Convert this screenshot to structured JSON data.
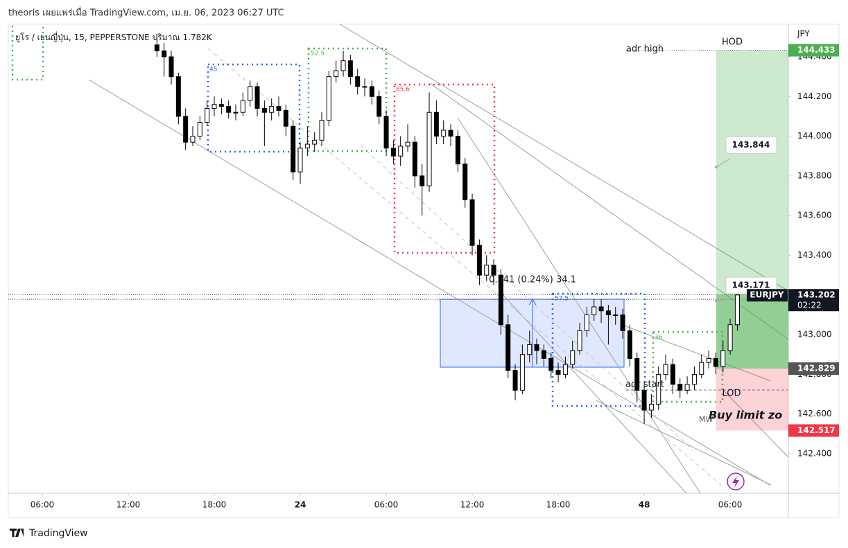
{
  "header": "theoris เผยแพร่เมื่อ TradingView.com, เม.ย. 06, 2023 06:27 UTC",
  "footer": "TradingView",
  "chart_data": {
    "type": "candlestick",
    "legend": "ยูโร / เยนญี่ปุ่น, 15, PEPPERSTONE",
    "volume_label": "ปริมาณ",
    "volume": "1.782K",
    "currency": "JPY",
    "symbol": "EURJPY",
    "up_color": "#ffffff",
    "down_color": "#000000",
    "x": [
      14,
      14.5,
      15,
      15.5,
      16,
      16.5,
      17,
      17.5,
      18,
      18.5,
      19,
      19.5,
      20,
      20.5,
      21,
      21.5,
      22,
      22.5,
      23,
      23.5,
      24,
      24.5,
      25,
      25.5,
      26,
      26.5,
      27,
      27.5,
      28,
      28.5,
      29,
      29.5,
      30,
      30.5,
      31,
      31.5,
      32,
      32.5,
      33,
      33.5,
      34,
      34.5,
      35,
      35.5,
      36,
      36.5,
      37,
      37.5,
      38,
      38.5,
      39,
      39.5,
      40,
      40.5,
      41,
      41.5,
      42,
      42.5,
      43,
      43.5,
      44,
      44.5,
      45,
      45.5,
      46,
      46.5,
      47,
      47.5,
      48,
      48.5,
      49,
      49.5,
      50,
      50.5,
      51,
      51.5,
      52,
      52.5,
      53,
      53.5,
      54,
      54.5
    ],
    "open": [
      144.46,
      144.43,
      144.4,
      144.3,
      144.1,
      143.97,
      144.0,
      144.07,
      144.14,
      144.16,
      144.15,
      144.12,
      144.12,
      144.18,
      144.25,
      144.14,
      144.12,
      144.15,
      144.13,
      144.05,
      143.82,
      143.94,
      143.96,
      143.98,
      144.08,
      144.3,
      144.33,
      144.38,
      144.3,
      144.25,
      144.25,
      144.2,
      144.1,
      143.94,
      143.9,
      143.95,
      143.97,
      143.8,
      143.75,
      144.12,
      144.0,
      144.03,
      144.0,
      143.86,
      143.68,
      143.45,
      143.3,
      143.35,
      143.3,
      143.05,
      142.82,
      142.72,
      142.9,
      142.95,
      142.92,
      142.88,
      142.82,
      142.8,
      142.85,
      142.92,
      143.02,
      143.1,
      143.14,
      143.12,
      143.1,
      143.1,
      143.02,
      142.88,
      142.72,
      142.62,
      142.65,
      142.8,
      142.85,
      142.75,
      142.72,
      142.75,
      142.8,
      142.86,
      142.88,
      142.84,
      142.92,
      143.05
    ],
    "high": [
      144.5,
      144.47,
      144.43,
      144.32,
      144.14,
      144.05,
      144.1,
      144.18,
      144.2,
      144.19,
      144.18,
      144.16,
      144.22,
      144.28,
      144.27,
      144.18,
      144.19,
      144.2,
      144.16,
      144.08,
      143.97,
      144.05,
      144.02,
      144.12,
      144.33,
      144.38,
      144.43,
      144.41,
      144.34,
      144.29,
      144.28,
      144.23,
      144.13,
      143.98,
      144.0,
      144.06,
      144.0,
      143.86,
      144.22,
      144.18,
      144.08,
      144.06,
      144.03,
      143.89,
      143.71,
      143.48,
      143.4,
      143.38,
      143.33,
      143.1,
      142.85,
      142.95,
      143.02,
      142.98,
      142.95,
      142.91,
      142.86,
      142.89,
      142.97,
      143.06,
      143.14,
      143.18,
      143.18,
      143.15,
      143.14,
      143.13,
      143.05,
      142.91,
      142.75,
      142.7,
      142.84,
      142.9,
      142.88,
      142.78,
      142.79,
      142.84,
      142.9,
      142.92,
      142.91,
      142.97,
      143.08,
      143.22
    ],
    "low": [
      144.4,
      144.3,
      144.26,
      144.06,
      143.93,
      143.95,
      143.98,
      144.05,
      144.1,
      144.11,
      144.09,
      144.08,
      144.1,
      144.15,
      144.1,
      143.95,
      144.08,
      144.1,
      144.0,
      143.78,
      143.76,
      143.9,
      143.92,
      143.95,
      144.05,
      144.27,
      144.3,
      144.26,
      144.21,
      144.2,
      144.16,
      144.06,
      143.9,
      143.86,
      143.85,
      143.92,
      143.74,
      143.6,
      143.72,
      143.96,
      143.96,
      143.95,
      143.82,
      143.64,
      143.4,
      143.25,
      143.27,
      143.25,
      143.0,
      142.78,
      142.67,
      142.7,
      142.86,
      142.85,
      142.84,
      142.78,
      142.76,
      142.78,
      142.83,
      142.9,
      142.99,
      143.07,
      143.06,
      142.95,
      143.05,
      142.98,
      142.84,
      142.66,
      142.55,
      142.58,
      142.62,
      142.77,
      142.7,
      142.68,
      142.7,
      142.72,
      142.78,
      142.83,
      142.8,
      142.81,
      142.9,
      143.02
    ],
    "close": [
      144.43,
      144.4,
      144.3,
      144.1,
      143.97,
      144.0,
      144.07,
      144.14,
      144.16,
      144.15,
      144.12,
      144.12,
      144.18,
      144.25,
      144.14,
      144.12,
      144.15,
      144.13,
      144.05,
      143.82,
      143.94,
      143.96,
      143.98,
      144.08,
      144.3,
      144.33,
      144.38,
      144.3,
      144.25,
      144.25,
      144.2,
      144.1,
      143.94,
      143.9,
      143.95,
      143.97,
      143.8,
      143.75,
      144.12,
      144.0,
      144.03,
      144.0,
      143.86,
      143.68,
      143.45,
      143.3,
      143.35,
      143.3,
      143.05,
      142.82,
      142.72,
      142.9,
      142.95,
      142.92,
      142.88,
      142.82,
      142.8,
      142.85,
      142.92,
      143.02,
      143.1,
      143.14,
      143.12,
      143.1,
      143.1,
      143.02,
      142.88,
      142.72,
      142.62,
      142.65,
      142.8,
      142.85,
      142.75,
      142.72,
      142.75,
      142.8,
      142.86,
      142.88,
      142.84,
      142.92,
      143.05,
      143.2
    ],
    "xlim": [
      3.63,
      58.06
    ],
    "xticks": [
      {
        "value": 6,
        "label": "06:00"
      },
      {
        "value": 12,
        "label": "12:00"
      },
      {
        "value": 18,
        "label": "18:00"
      },
      24,
      {
        "value": 30,
        "label": "06:00"
      },
      {
        "value": 36,
        "label": "12:00"
      },
      {
        "value": 42,
        "label": "18:00"
      },
      48,
      {
        "value": 54,
        "label": "06:00"
      }
    ],
    "ylim": [
      142.201,
      144.564
    ],
    "yticks": [
      {
        "value": 142.4,
        "label": "142.400"
      },
      {
        "value": 142.6,
        "label": "142.600"
      },
      {
        "value": 142.8,
        "label": "142.800"
      },
      {
        "value": 143.0,
        "label": "143.000"
      },
      {
        "value": 143.2,
        "label": "143.200"
      },
      {
        "value": 143.4,
        "label": "143.400"
      },
      {
        "value": 143.6,
        "label": "143.600"
      },
      {
        "value": 143.8,
        "label": "143.800"
      },
      {
        "value": 144.0,
        "label": "144.000"
      },
      {
        "value": 144.2,
        "label": "144.200"
      },
      {
        "value": 144.4,
        "label": "144.400"
      }
    ],
    "grid": false,
    "price_markers": [
      {
        "value": 144.433,
        "label": "144.433",
        "color": "#4caf50"
      },
      {
        "value": 143.202,
        "label": "143.202",
        "countdown": "02:22",
        "color": "#131722"
      },
      {
        "value": 142.829,
        "label": "142.829",
        "color": "#555555"
      },
      {
        "value": 142.517,
        "label": "142.517",
        "color": "#f23645"
      }
    ],
    "callouts": [
      {
        "value": 143.844,
        "label": "143.844"
      },
      {
        "value": 143.171,
        "label": "143.171"
      }
    ],
    "annotations": [
      "adr high",
      "HOD",
      "H",
      "adr start",
      "LOD",
      "Buy limit zo",
      "MW"
    ],
    "measure": "0.341 (0.24%) 34.1",
    "box_labels": [
      "45",
      "52.5",
      "85.6",
      "57.5",
      "36"
    ]
  }
}
